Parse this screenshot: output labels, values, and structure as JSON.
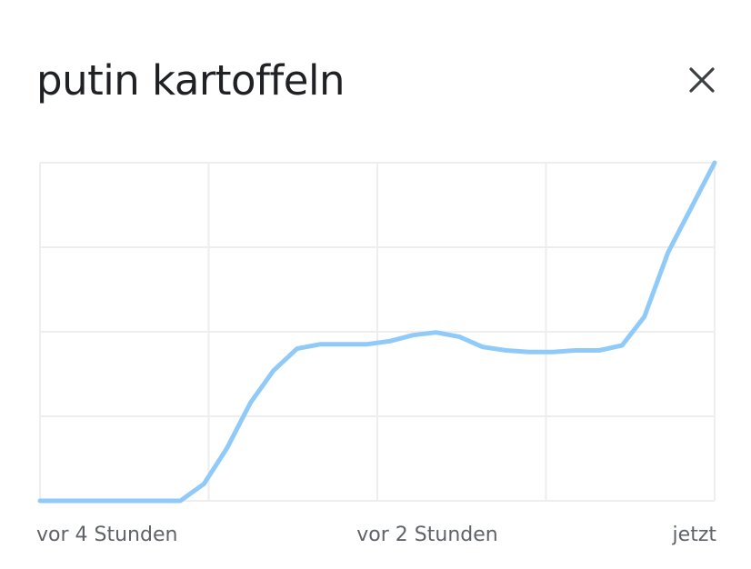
{
  "title": "putin kartoffeln",
  "close_icon": "close-icon",
  "colors": {
    "line": "#90caf9",
    "grid": "#eeeeee",
    "title": "#202124",
    "ticks": "#5f6368"
  },
  "chart_data": {
    "type": "line",
    "title": "",
    "xlabel": "",
    "ylabel": "",
    "grid": true,
    "legend": "none",
    "x_ticks": [
      "vor 4 Stunden",
      "vor 2 Stunden",
      "jetzt"
    ],
    "x_tick_positions": [
      0,
      0.5,
      1
    ],
    "ylim": [
      0,
      100
    ],
    "y_gridlines": [
      0,
      25,
      50,
      75,
      100
    ],
    "series": [
      {
        "values": [
          [
            0.0,
            0
          ],
          [
            0.035,
            0
          ],
          [
            0.07,
            0
          ],
          [
            0.105,
            0
          ],
          [
            0.14,
            0
          ],
          [
            0.175,
            0
          ],
          [
            0.208,
            0
          ],
          [
            0.243,
            5
          ],
          [
            0.277,
            15.5
          ],
          [
            0.312,
            29
          ],
          [
            0.346,
            38.5
          ],
          [
            0.381,
            45
          ],
          [
            0.415,
            46.3
          ],
          [
            0.45,
            46.3
          ],
          [
            0.484,
            46.3
          ],
          [
            0.518,
            47.2
          ],
          [
            0.553,
            49
          ],
          [
            0.587,
            49.8
          ],
          [
            0.622,
            48.5
          ],
          [
            0.656,
            45.5
          ],
          [
            0.691,
            44.5
          ],
          [
            0.725,
            44
          ],
          [
            0.76,
            44
          ],
          [
            0.794,
            44.5
          ],
          [
            0.829,
            44.5
          ],
          [
            0.863,
            46
          ],
          [
            0.896,
            54.5
          ],
          [
            0.931,
            73.5
          ],
          [
            1.0,
            100
          ]
        ]
      }
    ]
  }
}
